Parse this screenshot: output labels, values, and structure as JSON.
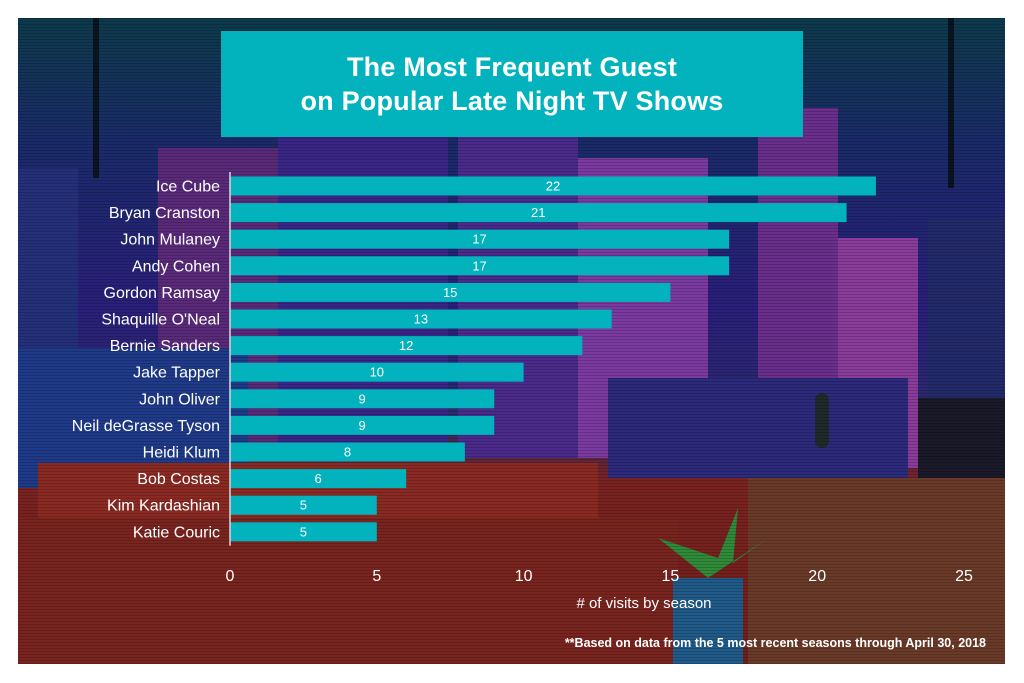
{
  "title": {
    "line1": "The Most Frequent Guest",
    "line2": "on Popular Late Night TV Shows"
  },
  "footnote": "**Based on data from the 5 most recent seasons through April 30, 2018",
  "colors": {
    "bar": "#02b2bd",
    "title_bg": "#02b2bd",
    "text": "#ffffff",
    "axis_line": "#d9d9d9"
  },
  "chart_data": {
    "type": "bar",
    "orientation": "horizontal",
    "title": "The Most Frequent Guest on Popular Late Night TV Shows",
    "xlabel": "# of visits by season",
    "ylabel": "",
    "categories": [
      "Ice Cube",
      "Bryan Cranston",
      "John Mulaney",
      "Andy Cohen",
      "Gordon Ramsay",
      "Shaquille O'Neal",
      "Bernie Sanders",
      "Jake Tapper",
      "John Oliver",
      "Neil deGrasse Tyson",
      "Heidi Klum",
      "Bob Costas",
      "Kim Kardashian",
      "Katie Couric"
    ],
    "values": [
      22,
      21,
      17,
      17,
      15,
      13,
      12,
      10,
      9,
      9,
      8,
      6,
      5,
      5
    ],
    "xlim": [
      0,
      25
    ],
    "xticks": [
      0,
      5,
      10,
      15,
      20,
      25
    ],
    "grid": false,
    "data_labels": true,
    "legend": "none",
    "footnote": "**Based on data from the 5 most recent seasons through April 30, 2018"
  }
}
